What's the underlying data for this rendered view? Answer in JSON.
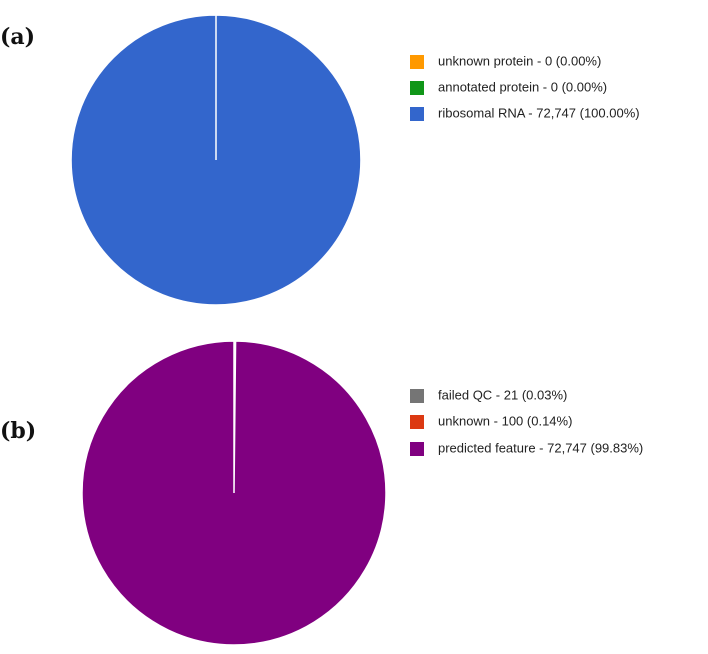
{
  "chart_data": [
    {
      "type": "pie",
      "label": "(a)",
      "categories": [
        "unknown protein - 0 (0.00%)",
        "annotated protein - 0 (0.00%)",
        "ribosomal RNA - 72,747 (100.00%)"
      ],
      "values": [
        0,
        0,
        72747
      ],
      "colors": [
        "#ff9900",
        "#109618",
        "#3366cc"
      ]
    },
    {
      "type": "pie",
      "label": "(b)",
      "categories": [
        "failed QC - 21 (0.03%)",
        "unknown - 100 (0.14%)",
        "predicted feature - 72,747 (99.83%)"
      ],
      "values": [
        21,
        100,
        72747
      ],
      "colors": [
        "#757575",
        "#dc3912",
        "#800080"
      ]
    }
  ]
}
